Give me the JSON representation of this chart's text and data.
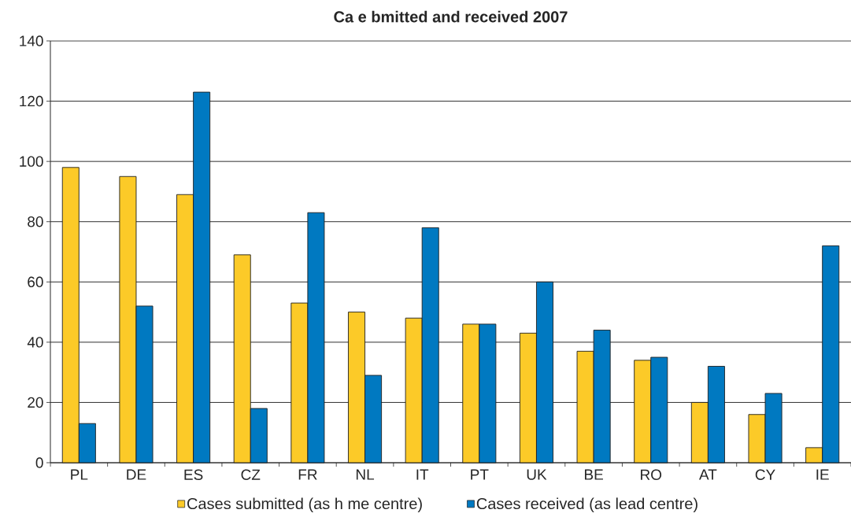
{
  "chart_data": {
    "type": "bar",
    "title": "Ca e bmitted and received 2007",
    "categories": [
      "PL",
      "DE",
      "ES",
      "CZ",
      "FR",
      "NL",
      "IT",
      "PT",
      "UK",
      "BE",
      "RO",
      "AT",
      "CY",
      "IE"
    ],
    "series": [
      {
        "name": "Cases submitted (as h me centre)",
        "color": "#fcca28",
        "values": [
          98,
          95,
          89,
          69,
          53,
          50,
          48,
          46,
          43,
          37,
          34,
          20,
          16,
          5
        ]
      },
      {
        "name": "Cases received (as lead centre)",
        "color": "#0079c1",
        "values": [
          13,
          52,
          123,
          18,
          83,
          29,
          78,
          46,
          60,
          44,
          35,
          32,
          23,
          72
        ]
      }
    ],
    "ylim": [
      0,
      140
    ],
    "yticks": [
      0,
      20,
      40,
      60,
      80,
      100,
      120,
      140
    ],
    "grid": "y",
    "legend": "bottom"
  }
}
